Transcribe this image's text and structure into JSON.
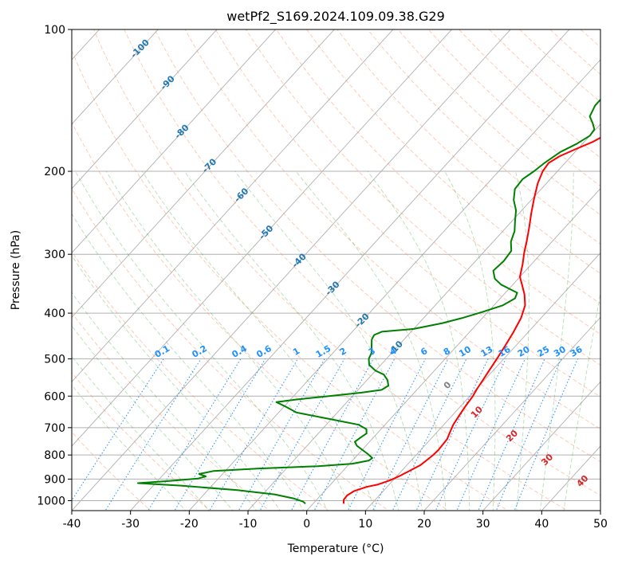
{
  "chart_data": {
    "type": "line",
    "title": "wetPf2_S169.2024.109.09.38.G29",
    "xlabel": "Temperature (°C)",
    "ylabel": "Pressure (hPa)",
    "xlim": [
      -40,
      50
    ],
    "ylim": [
      1050,
      100
    ],
    "y_scale": "log",
    "grid": true,
    "x_ticks": [
      -40,
      -30,
      -20,
      -10,
      0,
      10,
      20,
      30,
      40,
      50
    ],
    "y_ticks": [
      1000,
      900,
      800,
      700,
      600,
      500,
      400,
      300,
      200,
      100
    ],
    "series": [
      {
        "role": "temperature",
        "color": "#ff0000",
        "points": [
          [
            5.2,
            1015
          ],
          [
            4.6,
            995
          ],
          [
            4.5,
            975
          ],
          [
            5.0,
            955
          ],
          [
            6.5,
            935
          ],
          [
            8.0,
            925
          ],
          [
            9.5,
            905
          ],
          [
            10.5,
            885
          ],
          [
            11.5,
            860
          ],
          [
            12.3,
            840
          ],
          [
            12.6,
            820
          ],
          [
            12.9,
            800
          ],
          [
            13.0,
            780
          ],
          [
            12.9,
            760
          ],
          [
            12.8,
            740
          ],
          [
            12.3,
            720
          ],
          [
            11.6,
            690
          ],
          [
            11.2,
            660
          ],
          [
            10.8,
            630
          ],
          [
            10.5,
            600
          ],
          [
            10.1,
            580
          ],
          [
            9.8,
            560
          ],
          [
            9.3,
            530
          ],
          [
            8.8,
            500
          ],
          [
            8.2,
            470
          ],
          [
            7.5,
            440
          ],
          [
            6.6,
            410
          ],
          [
            5.3,
            385
          ],
          [
            3.5,
            365
          ],
          [
            1.8,
            350
          ],
          [
            0.0,
            335
          ],
          [
            -1.5,
            315
          ],
          [
            -3.0,
            298
          ],
          [
            -4.5,
            280
          ],
          [
            -6.2,
            262
          ],
          [
            -8.0,
            245
          ],
          [
            -9.8,
            228
          ],
          [
            -11.5,
            212
          ],
          [
            -12.5,
            200
          ],
          [
            -12.8,
            192
          ],
          [
            -12.0,
            186
          ],
          [
            -10.5,
            180
          ],
          [
            -8.5,
            173
          ],
          [
            -7.0,
            165
          ],
          [
            -5.2,
            160
          ],
          [
            -2.0,
            155
          ],
          [
            2.0,
            150
          ],
          [
            6.0,
            144
          ],
          [
            9.0,
            137
          ],
          [
            11.5,
            128
          ],
          [
            13.5,
            118
          ],
          [
            15.5,
            110
          ],
          [
            17.5,
            103
          ],
          [
            18.5,
            100
          ]
        ]
      },
      {
        "role": "dewpoint",
        "color": "#008000",
        "points": [
          [
            -1.3,
            1015
          ],
          [
            -2.0,
            1005
          ],
          [
            -4.0,
            990
          ],
          [
            -8.0,
            970
          ],
          [
            -15.0,
            950
          ],
          [
            -25.0,
            930
          ],
          [
            -33.0,
            918
          ],
          [
            -28.0,
            908
          ],
          [
            -23.5,
            898
          ],
          [
            -22.5,
            888
          ],
          [
            -24.0,
            878
          ],
          [
            -22.0,
            865
          ],
          [
            -15.0,
            855
          ],
          [
            -5.0,
            845
          ],
          [
            0.5,
            835
          ],
          [
            2.8,
            822
          ],
          [
            3.0,
            812
          ],
          [
            1.5,
            795
          ],
          [
            0.0,
            780
          ],
          [
            -1.5,
            765
          ],
          [
            -2.5,
            750
          ],
          [
            -2.2,
            735
          ],
          [
            -1.8,
            720
          ],
          [
            -2.5,
            705
          ],
          [
            -4.5,
            690
          ],
          [
            -10.0,
            672
          ],
          [
            -17.0,
            650
          ],
          [
            -20.0,
            630
          ],
          [
            -22.0,
            618
          ],
          [
            -19.0,
            610
          ],
          [
            -14.0,
            600
          ],
          [
            -9.0,
            590
          ],
          [
            -6.0,
            582
          ],
          [
            -5.5,
            570
          ],
          [
            -6.5,
            555
          ],
          [
            -8.0,
            540
          ],
          [
            -10.0,
            530
          ],
          [
            -12.0,
            515
          ],
          [
            -13.0,
            500
          ],
          [
            -13.5,
            485
          ],
          [
            -14.5,
            470
          ],
          [
            -15.5,
            455
          ],
          [
            -15.8,
            445
          ],
          [
            -15.0,
            438
          ],
          [
            -10.0,
            432
          ],
          [
            -6.0,
            420
          ],
          [
            -3.5,
            410
          ],
          [
            -1.0,
            398
          ],
          [
            1.5,
            385
          ],
          [
            2.5,
            372
          ],
          [
            2.0,
            362
          ],
          [
            0.0,
            355
          ],
          [
            -2.0,
            348
          ],
          [
            -4.0,
            338
          ],
          [
            -5.5,
            325
          ],
          [
            -5.2,
            310
          ],
          [
            -5.5,
            295
          ],
          [
            -7.0,
            282
          ],
          [
            -8.0,
            268
          ],
          [
            -9.5,
            255
          ],
          [
            -11.0,
            242
          ],
          [
            -13.0,
            230
          ],
          [
            -14.5,
            218
          ],
          [
            -14.7,
            208
          ],
          [
            -14.0,
            200
          ],
          [
            -13.5,
            192
          ],
          [
            -12.5,
            182
          ],
          [
            -11.0,
            175
          ],
          [
            -10.0,
            168
          ],
          [
            -10.2,
            163
          ],
          [
            -11.5,
            158
          ],
          [
            -13.0,
            153
          ],
          [
            -13.8,
            145
          ],
          [
            -13.8,
            135
          ],
          [
            -13.0,
            128
          ],
          [
            -11.5,
            120
          ],
          [
            -9.0,
            113
          ],
          [
            -7.5,
            107
          ],
          [
            -6.2,
            100
          ]
        ]
      }
    ],
    "dry_adiabat_color": "#ff7f50",
    "moist_adiabat_color": "#2ca02c",
    "isotherm_color": "#808080",
    "mixing_ratio_color": "#1e90ff",
    "skewed_isotherm_labels": [
      {
        "value": "-100",
        "t": -100,
        "p": 110
      },
      {
        "value": "-90",
        "t": -90,
        "p": 130
      },
      {
        "value": "-80",
        "t": -80,
        "p": 165
      },
      {
        "value": "-70",
        "t": -70,
        "p": 195
      },
      {
        "value": "-60",
        "t": -60,
        "p": 225
      },
      {
        "value": "-50",
        "t": -50,
        "p": 270
      },
      {
        "value": "-40",
        "t": -40,
        "p": 310
      },
      {
        "value": "-30",
        "t": -30,
        "p": 355
      },
      {
        "value": "-20",
        "t": -20,
        "p": 415
      },
      {
        "value": "-10",
        "t": -10,
        "p": 475
      }
    ],
    "mixing_ratio_labels": [
      "0.1",
      "0.2",
      "0.4",
      "0.6",
      "1",
      "1.5",
      "2",
      "3",
      "4",
      "6",
      "8",
      "10",
      "13",
      "16",
      "20",
      "25",
      "30",
      "36"
    ],
    "mixing_ratio_values": [
      0.1,
      0.2,
      0.4,
      0.6,
      1,
      1.5,
      2,
      3,
      4,
      6,
      8,
      10,
      13,
      16,
      20,
      25,
      30,
      36
    ],
    "moist_labels": [
      {
        "value": "0",
        "t": 24,
        "p": 570,
        "color": "#808080"
      },
      {
        "value": "10",
        "t": 29,
        "p": 650,
        "color": "#d62728"
      },
      {
        "value": "20",
        "t": 35,
        "p": 730,
        "color": "#d62728"
      },
      {
        "value": "30",
        "t": 41,
        "p": 820,
        "color": "#d62728"
      },
      {
        "value": "40",
        "t": 47,
        "p": 910,
        "color": "#d62728"
      }
    ]
  }
}
